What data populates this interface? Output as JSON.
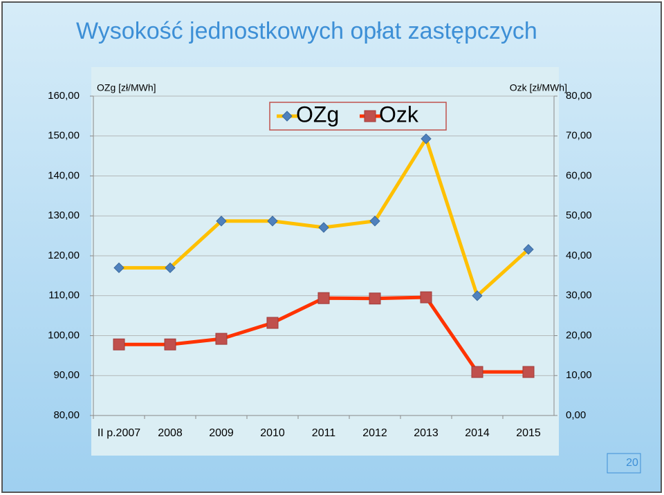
{
  "chart_data": {
    "type": "line",
    "title": "Wysokość  jednostkowych opłat zastępczych",
    "y_label": "OZg [zł/MWh]",
    "y2_label": "Ozk [zł/MWh]",
    "categories": [
      "II p.2007",
      "2008",
      "2009",
      "2010",
      "2011",
      "2012",
      "2013",
      "2014",
      "2015"
    ],
    "series": [
      {
        "name": "OZg",
        "color": "#ffc000",
        "marker_color": "#4f81bd",
        "marker": "diamond",
        "values": [
          117.0,
          117.0,
          128.7,
          128.7,
          127.1,
          128.7,
          149.3,
          110.0,
          121.6
        ]
      },
      {
        "name": "Ozk",
        "color": "#ff3300",
        "marker_color": "#c0504d",
        "marker": "square",
        "axis": "y2",
        "values": [
          17.8,
          17.8,
          19.2,
          23.2,
          29.4,
          29.3,
          29.6,
          10.9,
          10.9
        ]
      }
    ],
    "ylim": [
      80,
      160
    ],
    "yticks": [
      {
        "value": 80,
        "label": "80,00"
      },
      {
        "value": 90,
        "label": "90,00"
      },
      {
        "value": 100,
        "label": "100,00"
      },
      {
        "value": 110,
        "label": "110,00"
      },
      {
        "value": 120,
        "label": "120,00"
      },
      {
        "value": 130,
        "label": "130,00"
      },
      {
        "value": 140,
        "label": "140,00"
      },
      {
        "value": 150,
        "label": "150,00"
      },
      {
        "value": 160,
        "label": "160,00"
      }
    ],
    "y2lim": [
      0,
      80
    ],
    "y2ticks": [
      {
        "value": 0,
        "label": "0,00"
      },
      {
        "value": 10,
        "label": "10,00"
      },
      {
        "value": 20,
        "label": "20,00"
      },
      {
        "value": 30,
        "label": "30,00"
      },
      {
        "value": 40,
        "label": "40,00"
      },
      {
        "value": 50,
        "label": "50,00"
      },
      {
        "value": 60,
        "label": "60,00"
      },
      {
        "value": 70,
        "label": "70,00"
      },
      {
        "value": 80,
        "label": "80,00"
      }
    ],
    "grid": true,
    "legend": "top"
  },
  "slide_number": "20"
}
